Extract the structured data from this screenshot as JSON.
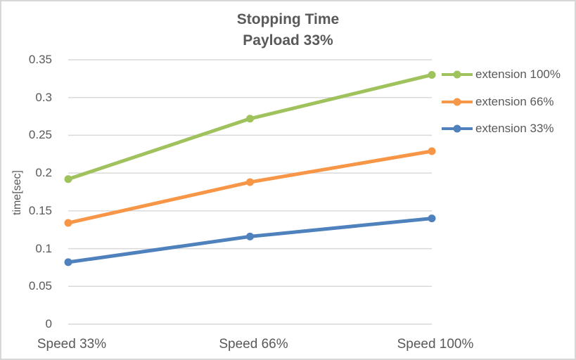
{
  "chart_data": {
    "type": "line",
    "title": "Stopping Time",
    "subtitle": "Payload 33%",
    "categories": [
      "Speed 33%",
      "Speed 66%",
      "Speed 100%"
    ],
    "series": [
      {
        "name": "extension 100%",
        "color": "#9fc25d",
        "values": [
          0.192,
          0.272,
          0.33
        ]
      },
      {
        "name": "extension 66%",
        "color": "#f79646",
        "values": [
          0.134,
          0.188,
          0.229
        ]
      },
      {
        "name": "extension 33%",
        "color": "#4f81bd",
        "values": [
          0.082,
          0.116,
          0.14
        ]
      }
    ],
    "xlabel": "",
    "ylabel": "time[sec]",
    "ylim": [
      0,
      0.35
    ],
    "ytick_step": 0.05,
    "yticks": [
      "0.35",
      "0.3",
      "0.25",
      "0.2",
      "0.15",
      "0.1",
      "0.05",
      "0"
    ],
    "grid": true,
    "gridline_color": "#d9d9d9",
    "text_color": "#595959",
    "legend_position": "right",
    "marker": "circle"
  }
}
